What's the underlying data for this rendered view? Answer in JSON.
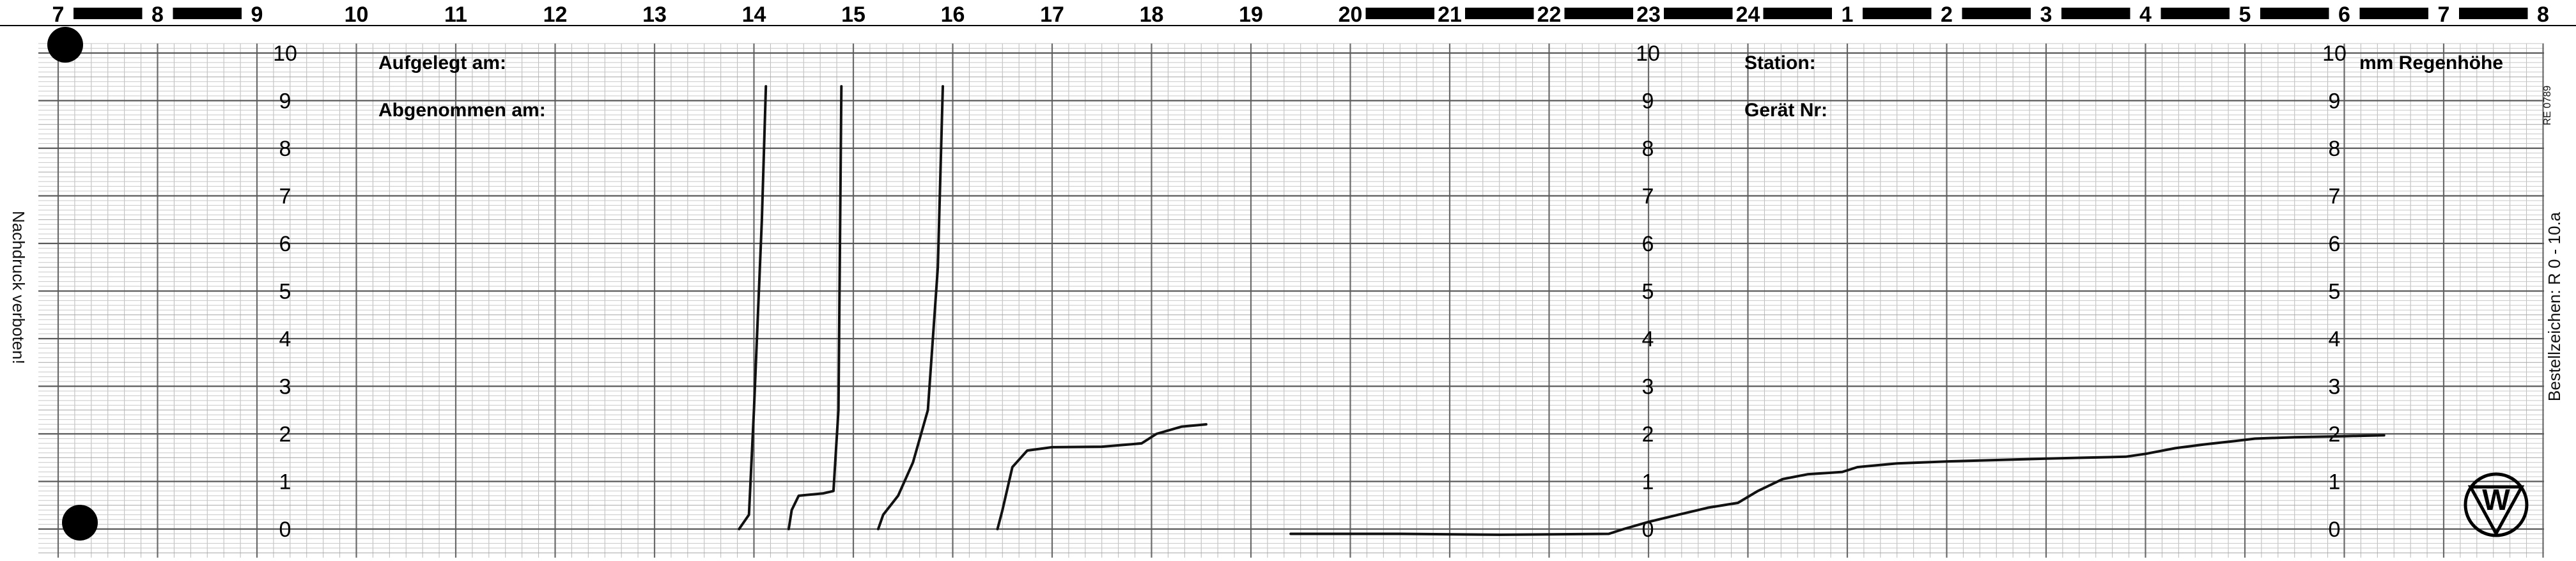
{
  "chart_data": {
    "type": "line",
    "hour_labels": [
      "7",
      "8",
      "9",
      "10",
      "11",
      "12",
      "13",
      "14",
      "15",
      "16",
      "17",
      "18",
      "19",
      "20",
      "21",
      "22",
      "23",
      "24",
      "1",
      "2",
      "3",
      "4",
      "5",
      "6",
      "7",
      "8"
    ],
    "y_ticks": [
      0,
      1,
      2,
      3,
      4,
      5,
      6,
      7,
      8,
      9,
      10
    ],
    "ylim": [
      0,
      10
    ],
    "header": {
      "aufgelegt": "Aufgelegt am:",
      "abgenommen": "Abgenommen am:",
      "station": "Station:",
      "geraet": "Gerät Nr:",
      "unit": "mm Regenhöhe"
    },
    "left_text": "Nachdruck verboten!",
    "right_text": "Bestellzeichen:  R 0  -  10.a",
    "form_no": "RE 0789",
    "logo_text": "W",
    "series": [
      {
        "segments": [
          [
            [
              13.85,
              0.0
            ],
            [
              13.95,
              0.3
            ],
            [
              14.0,
              2.5
            ],
            [
              14.08,
              6.5
            ],
            [
              14.12,
              9.3
            ]
          ],
          [
            [
              14.35,
              0.0
            ],
            [
              14.38,
              0.4
            ],
            [
              14.45,
              0.7
            ],
            [
              14.7,
              0.75
            ],
            [
              14.8,
              0.8
            ],
            [
              14.85,
              2.5
            ],
            [
              14.88,
              9.3
            ]
          ],
          [
            [
              15.25,
              0.0
            ],
            [
              15.3,
              0.3
            ],
            [
              15.45,
              0.7
            ],
            [
              15.6,
              1.4
            ],
            [
              15.75,
              2.5
            ],
            [
              15.85,
              5.5
            ],
            [
              15.9,
              9.3
            ]
          ],
          [
            [
              16.45,
              0.0
            ],
            [
              16.5,
              0.4
            ],
            [
              16.6,
              1.3
            ],
            [
              16.75,
              1.65
            ],
            [
              17.0,
              1.72
            ],
            [
              17.5,
              1.73
            ],
            [
              17.9,
              1.8
            ],
            [
              18.05,
              2.0
            ],
            [
              18.3,
              2.15
            ],
            [
              18.55,
              2.2
            ]
          ],
          [
            [
              19.4,
              -0.1
            ],
            [
              20.5,
              -0.1
            ],
            [
              21.5,
              -0.12
            ],
            [
              22.6,
              -0.1
            ],
            [
              22.75,
              0.0
            ],
            [
              23.0,
              0.15
            ],
            [
              23.3,
              0.3
            ],
            [
              23.6,
              0.45
            ],
            [
              23.9,
              0.55
            ],
            [
              24.1,
              0.8
            ],
            [
              24.35,
              1.05
            ],
            [
              24.6,
              1.15
            ],
            [
              24.95,
              1.2
            ],
            [
              25.1,
              1.3
            ],
            [
              25.5,
              1.38
            ],
            [
              26.0,
              1.42
            ],
            [
              26.5,
              1.45
            ],
            [
              27.0,
              1.48
            ],
            [
              27.4,
              1.5
            ],
            [
              27.8,
              1.52
            ],
            [
              28.0,
              1.58
            ],
            [
              28.3,
              1.7
            ],
            [
              28.6,
              1.78
            ],
            [
              28.9,
              1.85
            ],
            [
              29.1,
              1.9
            ],
            [
              29.5,
              1.93
            ],
            [
              30.0,
              1.95
            ],
            [
              30.4,
              1.97
            ]
          ]
        ]
      }
    ]
  }
}
